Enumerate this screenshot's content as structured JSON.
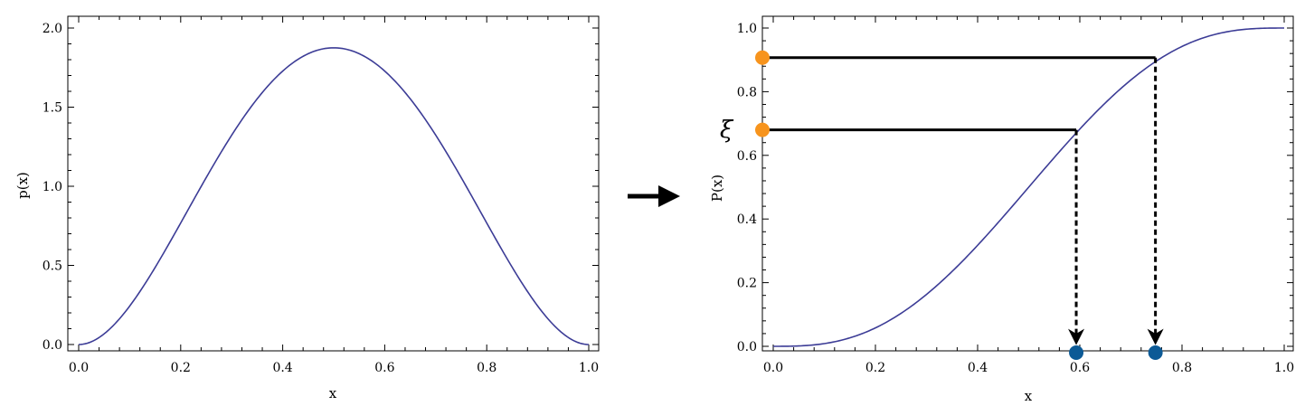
{
  "colors": {
    "curve": "#3c3c96",
    "xi_point": "#f7941d",
    "x_point": "#0c5a96",
    "guide": "#000000"
  },
  "chart_data": [
    {
      "type": "line",
      "function": "30*x^2*(1-x)^2",
      "x": [
        0.0,
        0.05,
        0.1,
        0.15,
        0.2,
        0.25,
        0.3,
        0.35,
        0.4,
        0.45,
        0.5,
        0.55,
        0.6,
        0.65,
        0.7,
        0.75,
        0.8,
        0.85,
        0.9,
        0.95,
        1.0
      ],
      "xlabel": "x",
      "ylabel": "p(x)",
      "xlim": [
        0,
        1
      ],
      "ylim": [
        0,
        2
      ],
      "xticks": [
        "0.0",
        "0.2",
        "0.4",
        "0.6",
        "0.8",
        "1.0"
      ],
      "yticks": [
        "0.0",
        "0.5",
        "1.0",
        "1.5",
        "2.0"
      ],
      "grid": false
    },
    {
      "type": "line",
      "function": "10*x^3 - 15*x^4 + 6*x^5",
      "x": [
        0.0,
        0.05,
        0.1,
        0.15,
        0.2,
        0.25,
        0.3,
        0.35,
        0.4,
        0.45,
        0.5,
        0.55,
        0.6,
        0.65,
        0.7,
        0.75,
        0.8,
        0.85,
        0.9,
        0.95,
        1.0
      ],
      "xlabel": "x",
      "ylabel": "P(x)",
      "side_label": "ξ",
      "xlim": [
        0,
        1
      ],
      "ylim": [
        0,
        1
      ],
      "xticks": [
        "0.0",
        "0.2",
        "0.4",
        "0.6",
        "0.8",
        "1.0"
      ],
      "yticks": [
        "0.0",
        "0.2",
        "0.4",
        "0.6",
        "0.8",
        "1.0"
      ],
      "grid": false,
      "samples": [
        {
          "xi": 0.68,
          "x": 0.593
        },
        {
          "xi": 0.907,
          "x": 0.748
        }
      ]
    }
  ]
}
